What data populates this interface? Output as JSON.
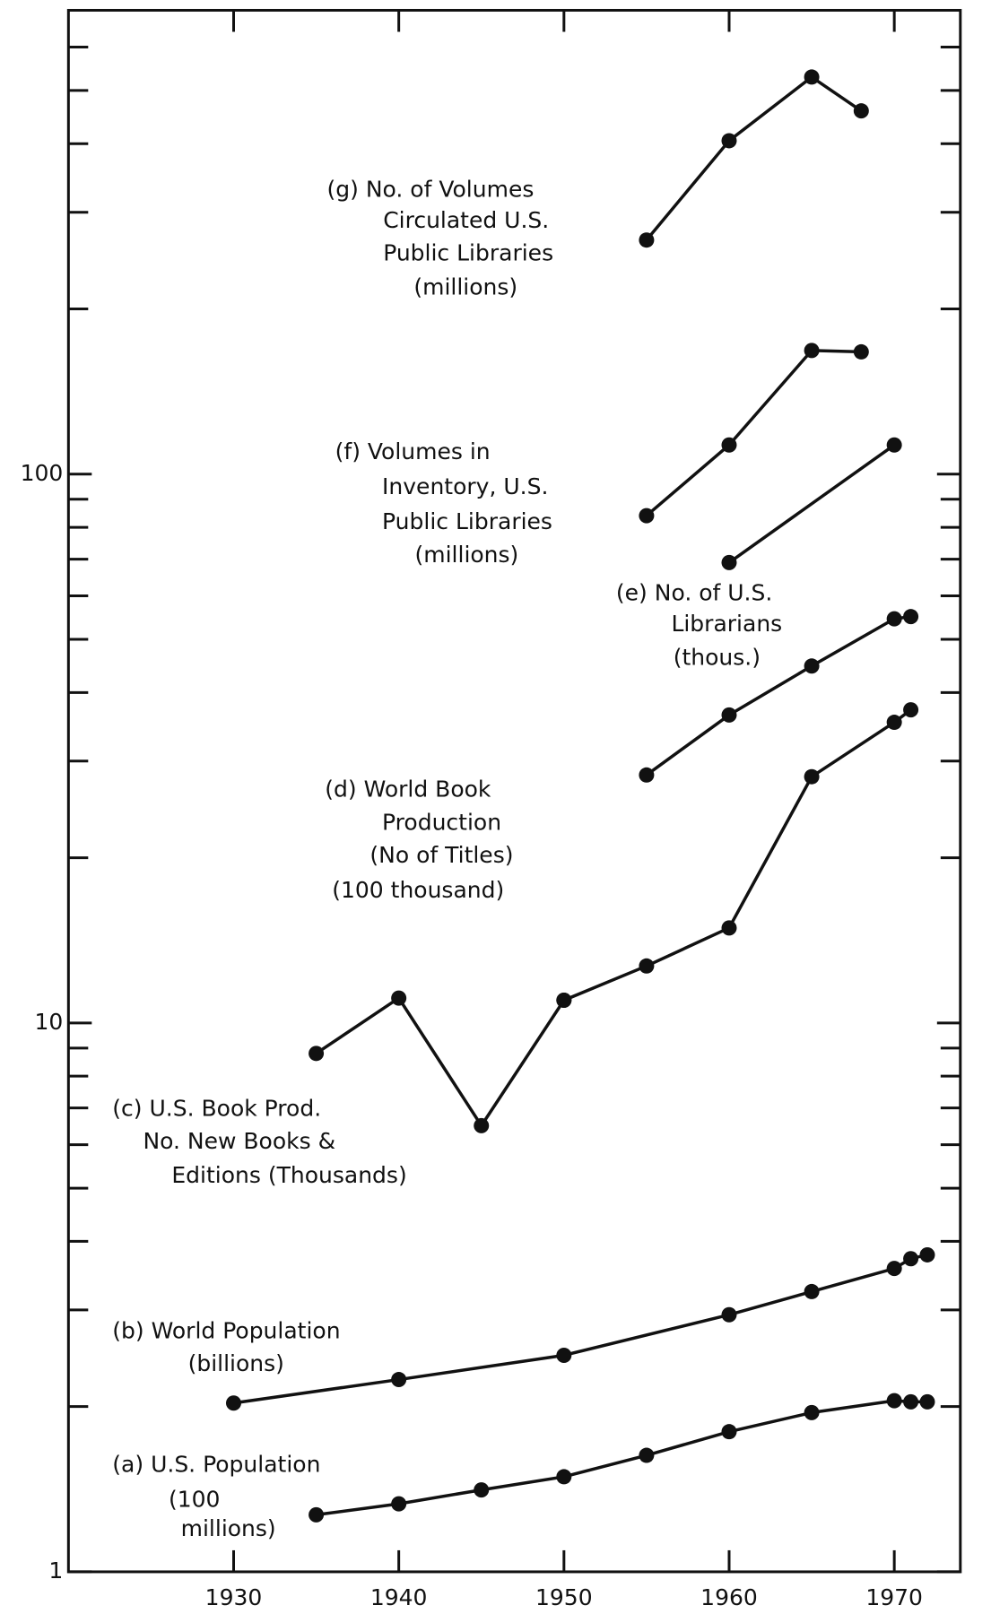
{
  "chart_data": {
    "type": "line",
    "log_y": true,
    "xlim": [
      1920,
      1974
    ],
    "xticks": [
      1930,
      1940,
      1950,
      1960,
      1970
    ],
    "ylim": [
      1,
      700
    ],
    "yticks": [
      1,
      10,
      100
    ],
    "minor_yticks": [
      2,
      3,
      4,
      5,
      6,
      7,
      8,
      9,
      20,
      30,
      40,
      50,
      60,
      70,
      80,
      90,
      200,
      300,
      400,
      500,
      600
    ],
    "color": "#111111",
    "series": [
      {
        "label": [
          "(g)  No. of Volumes",
          "Circulated U.S.",
          "Public Libraries",
          "(millions)"
        ],
        "x": [
          1955,
          1960,
          1965,
          1968
        ],
        "values": [
          267,
          405,
          529,
          459
        ]
      },
      {
        "label": [
          "(f)  Volumes in",
          "Inventory, U.S.",
          "Public Libraries",
          "(millions)"
        ],
        "x": [
          1955,
          1960,
          1965,
          1968
        ],
        "values": [
          84,
          113,
          168,
          167
        ]
      },
      {
        "x": [
          1960,
          1970
        ],
        "values": [
          69,
          113
        ]
      },
      {
        "label": [
          "(e)  No. of U.S.",
          "Librarians",
          "(thous.)"
        ],
        "x": [
          1955,
          1960,
          1965,
          1970,
          1971
        ],
        "values": [
          28.3,
          36.4,
          44.7,
          54.5,
          55
        ]
      },
      {
        "label": [
          "(d)  World Book",
          "Production",
          "(No of Titles)",
          "(100 thousand)"
        ],
        "x": [
          1950,
          1955,
          1960,
          1965,
          1970,
          1971
        ],
        "values": [
          11,
          12.7,
          14.9,
          28.1,
          35.3,
          37.2
        ]
      },
      {
        "label": [
          "(c)  U.S. Book Prod.",
          "No. New Books &",
          "Editions (Thousands)"
        ],
        "x": [
          1935,
          1940,
          1945,
          1950
        ],
        "values": [
          8.8,
          11.1,
          6.5,
          11
        ]
      },
      {
        "label": [
          "(b)  World Population",
          "(billions)"
        ],
        "x": [
          1930,
          1940,
          1950,
          1960,
          1965,
          1970,
          1971,
          1972
        ],
        "values": [
          2.03,
          2.24,
          2.48,
          2.94,
          3.24,
          3.57,
          3.72,
          3.78
        ]
      },
      {
        "label": [
          "(a)  U.S. Population",
          "(100",
          "millions)"
        ],
        "x": [
          1935,
          1940,
          1945,
          1950,
          1955,
          1960,
          1965,
          1970,
          1971,
          1972
        ],
        "values": [
          1.27,
          1.33,
          1.41,
          1.49,
          1.63,
          1.8,
          1.95,
          2.05,
          2.04,
          2.04
        ]
      }
    ]
  }
}
